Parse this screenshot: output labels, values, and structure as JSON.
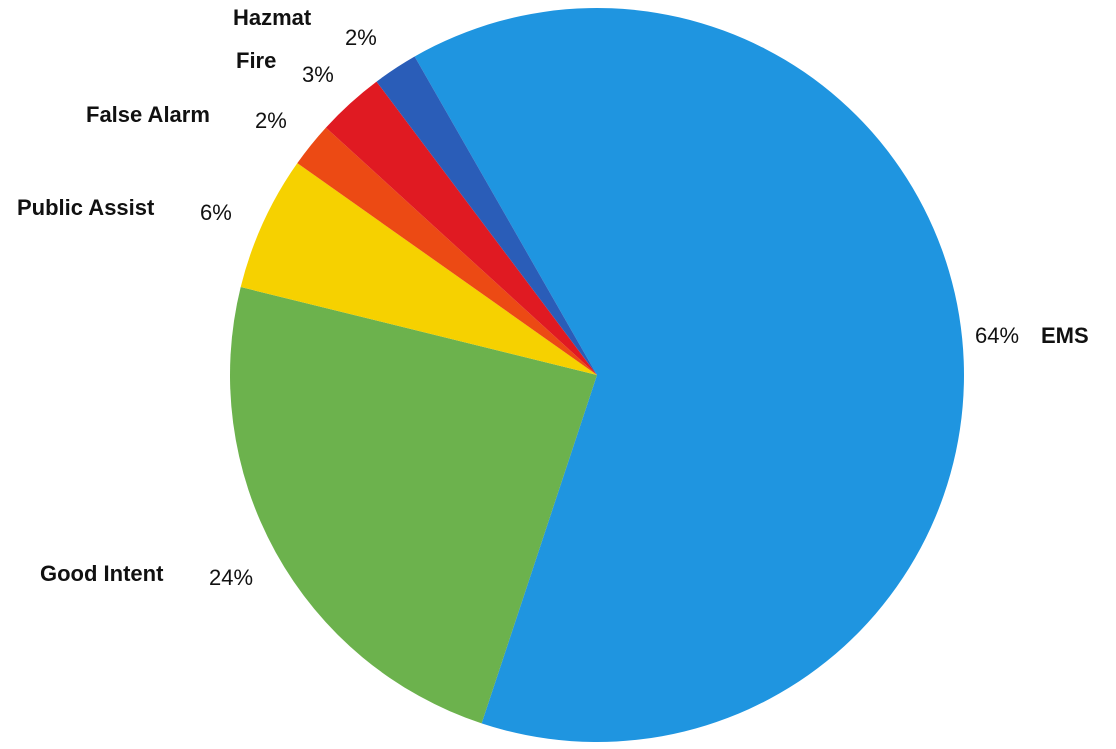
{
  "chart_data": {
    "type": "pie",
    "title": "",
    "slices": [
      {
        "label": "EMS",
        "value": 64,
        "value_label": "64%",
        "color": "#1f95e0"
      },
      {
        "label": "Good Intent",
        "value": 24,
        "value_label": "24%",
        "color": "#6cb24d"
      },
      {
        "label": "Public Assist",
        "value": 6,
        "value_label": "6%",
        "color": "#f6d100"
      },
      {
        "label": "False Alarm",
        "value": 2,
        "value_label": "2%",
        "color": "#ec4a14"
      },
      {
        "label": "Fire",
        "value": 3,
        "value_label": "3%",
        "color": "#e01a22"
      },
      {
        "label": "Hazmat",
        "value": 2,
        "value_label": "2%",
        "color": "#2a5db8"
      }
    ],
    "start": "Hazmat/EMS boundary near top, clockwise order: EMS, Good Intent, Public Assist, False Alarm, Fire, Hazmat",
    "legend": "none (labels placed beside slices)"
  }
}
